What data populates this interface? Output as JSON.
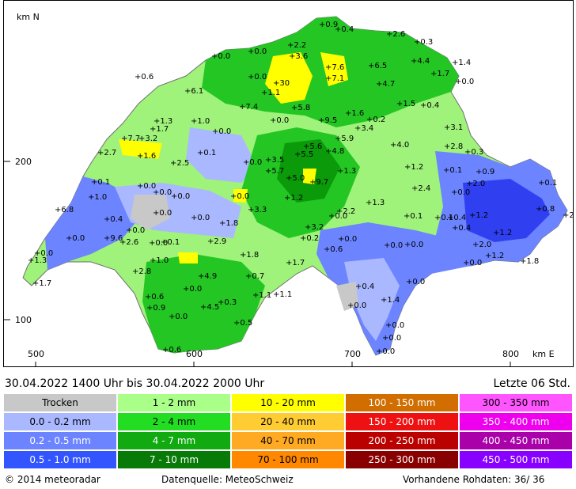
{
  "map": {
    "north_label": "km N",
    "east_label": "km E",
    "y_ticks": [
      "200",
      "100"
    ],
    "x_ticks": [
      "500",
      "600",
      "700",
      "800"
    ],
    "colors": {
      "border": "#8a8a8a",
      "dry": "#c8c8c8",
      "light_blue": "#aab8ff",
      "mid_blue": "#6c84ff",
      "dark_blue": "#3040f0",
      "light_green": "#9ff27a",
      "green": "#24c624",
      "dark_green": "#0a9a0a",
      "yellow": "#ffff00",
      "orange": "#ffcc33"
    },
    "values": [
      {
        "label": "0.9"
      },
      {
        "label": "0.4"
      },
      {
        "label": "2.2"
      },
      {
        "label": "2.6"
      },
      {
        "label": "0.3"
      },
      {
        "label": "0.0"
      },
      {
        "label": "0.0"
      },
      {
        "label": "3.6"
      },
      {
        "label": "4.4"
      },
      {
        "label": "1.4"
      },
      {
        "label": "0.6"
      },
      {
        "label": "30"
      },
      {
        "label": "7.6"
      },
      {
        "label": "6.5"
      },
      {
        "label": "1.7"
      },
      {
        "label": "0.0"
      },
      {
        "label": "1.1"
      },
      {
        "label": "7.1"
      },
      {
        "label": "4.7"
      },
      {
        "label": "0.0"
      },
      {
        "label": "6.1"
      },
      {
        "label": "7.4"
      },
      {
        "label": "5.8"
      },
      {
        "label": "1.5"
      },
      {
        "label": "0.4"
      },
      {
        "label": "1.3"
      },
      {
        "label": "1.0"
      },
      {
        "label": "0.0"
      },
      {
        "label": "9.5"
      },
      {
        "label": "1.6"
      },
      {
        "label": "0.2"
      },
      {
        "label": "3.1"
      },
      {
        "label": "1.7"
      },
      {
        "label": "0.0"
      },
      {
        "label": "3.4"
      },
      {
        "label": "7.7"
      },
      {
        "label": "3.2"
      },
      {
        "label": "5.9"
      },
      {
        "label": "5.6"
      },
      {
        "label": "4.0"
      },
      {
        "label": "2.8"
      },
      {
        "label": "2.7"
      },
      {
        "label": "1.6"
      },
      {
        "label": "0.1"
      },
      {
        "label": "5.5"
      },
      {
        "label": "4.8"
      },
      {
        "label": "0.3"
      },
      {
        "label": "2.5"
      },
      {
        "label": "0.0"
      },
      {
        "label": "3.5"
      },
      {
        "label": "1.2"
      },
      {
        "label": "0.1"
      },
      {
        "label": "0.9"
      },
      {
        "label": "0.1"
      },
      {
        "label": "5.7"
      },
      {
        "label": "1.3"
      },
      {
        "label": "2.0"
      },
      {
        "label": "0.0"
      },
      {
        "label": "0.0"
      },
      {
        "label": "5.0"
      },
      {
        "label": "9.7"
      },
      {
        "label": "0.1"
      },
      {
        "label": "1.0"
      },
      {
        "label": "0.0"
      },
      {
        "label": "0.0"
      },
      {
        "label": "1.2"
      },
      {
        "label": "2.4"
      },
      {
        "label": "0.0"
      },
      {
        "label": "0.1"
      },
      {
        "label": "6.8"
      },
      {
        "label": "0.0"
      },
      {
        "label": "3.3"
      },
      {
        "label": "2.2"
      },
      {
        "label": "1.3"
      },
      {
        "label": "0.8"
      },
      {
        "label": "2.9"
      },
      {
        "label": "0.4"
      },
      {
        "label": "0.0"
      },
      {
        "label": "1.8"
      },
      {
        "label": "0.0"
      },
      {
        "label": "0.4"
      },
      {
        "label": "0.1"
      },
      {
        "label": "1.2"
      },
      {
        "label": "0.0"
      },
      {
        "label": "3.2"
      },
      {
        "label": "0.4"
      },
      {
        "label": "1.2"
      },
      {
        "label": "9.6"
      },
      {
        "label": "0.0"
      },
      {
        "label": "0.2"
      },
      {
        "label": "0.0"
      },
      {
        "label": "2.0"
      },
      {
        "label": "2.6"
      },
      {
        "label": "0.1"
      },
      {
        "label": "2.9"
      },
      {
        "label": "0.6"
      },
      {
        "label": "0.0"
      },
      {
        "label": "0.0"
      },
      {
        "label": "1.2"
      },
      {
        "label": "0.0"
      },
      {
        "label": "1.0"
      },
      {
        "label": "1.8"
      },
      {
        "label": "1.8"
      },
      {
        "label": "1.3"
      },
      {
        "label": "1.7"
      },
      {
        "label": "0.0"
      },
      {
        "label": "2.8"
      },
      {
        "label": "4.9"
      },
      {
        "label": "0.7"
      },
      {
        "label": "0.0"
      },
      {
        "label": "1.7"
      },
      {
        "label": "0.0"
      },
      {
        "label": "0.4"
      },
      {
        "label": "0.6"
      },
      {
        "label": "1.1"
      },
      {
        "label": "1.1"
      },
      {
        "label": "0.0"
      },
      {
        "label": "1.4"
      },
      {
        "label": "0.9"
      },
      {
        "label": "0.3"
      },
      {
        "label": "4.5"
      },
      {
        "label": "0.0"
      },
      {
        "label": "0.5"
      },
      {
        "label": "0.0"
      },
      {
        "label": "0.0"
      },
      {
        "label": "0.6"
      },
      {
        "label": "0.0"
      },
      {
        "label": "0.0"
      }
    ]
  },
  "period": {
    "text": "30.04.2022  1400 Uhr   bis   30.04.2022  2000 Uhr",
    "last_hours": "Letzte 06 Std."
  },
  "legend": [
    {
      "label": "Trocken",
      "color": "#c8c8c8"
    },
    {
      "label": "1 - 2 mm",
      "color": "#aaff88"
    },
    {
      "label": "10 - 20 mm",
      "color": "#ffff00"
    },
    {
      "label": "100 - 150 mm",
      "color": "#d26e00"
    },
    {
      "label": "300 - 350 mm",
      "color": "#ff55ff"
    },
    {
      "label": "0.0 - 0.2 mm",
      "color": "#aab8ff"
    },
    {
      "label": "2 - 4 mm",
      "color": "#22dd22"
    },
    {
      "label": "20 - 40 mm",
      "color": "#ffcc33"
    },
    {
      "label": "150 - 200 mm",
      "color": "#ee1111"
    },
    {
      "label": "350 - 400 mm",
      "color": "#ee00ee"
    },
    {
      "label": "0.2 - 0.5 mm",
      "color": "#6c84ff"
    },
    {
      "label": "4 - 7 mm",
      "color": "#11aa11"
    },
    {
      "label": "40 - 70 mm",
      "color": "#ffaa22"
    },
    {
      "label": "200 - 250 mm",
      "color": "#bb0000"
    },
    {
      "label": "400 - 450 mm",
      "color": "#aa00aa"
    },
    {
      "label": "0.5 - 1.0 mm",
      "color": "#3355ff"
    },
    {
      "label": "7 - 10 mm",
      "color": "#087a08"
    },
    {
      "label": "70 - 100 mm",
      "color": "#ff8800"
    },
    {
      "label": "250 - 300 mm",
      "color": "#880000"
    },
    {
      "label": "450 - 500 mm",
      "color": "#8800ff"
    }
  ],
  "footer": {
    "copyright": "© 2014  meteoradar",
    "source": "Datenquelle: MeteoSchweiz",
    "raw_data": "Vorhandene Rohdaten:  36/ 36"
  }
}
